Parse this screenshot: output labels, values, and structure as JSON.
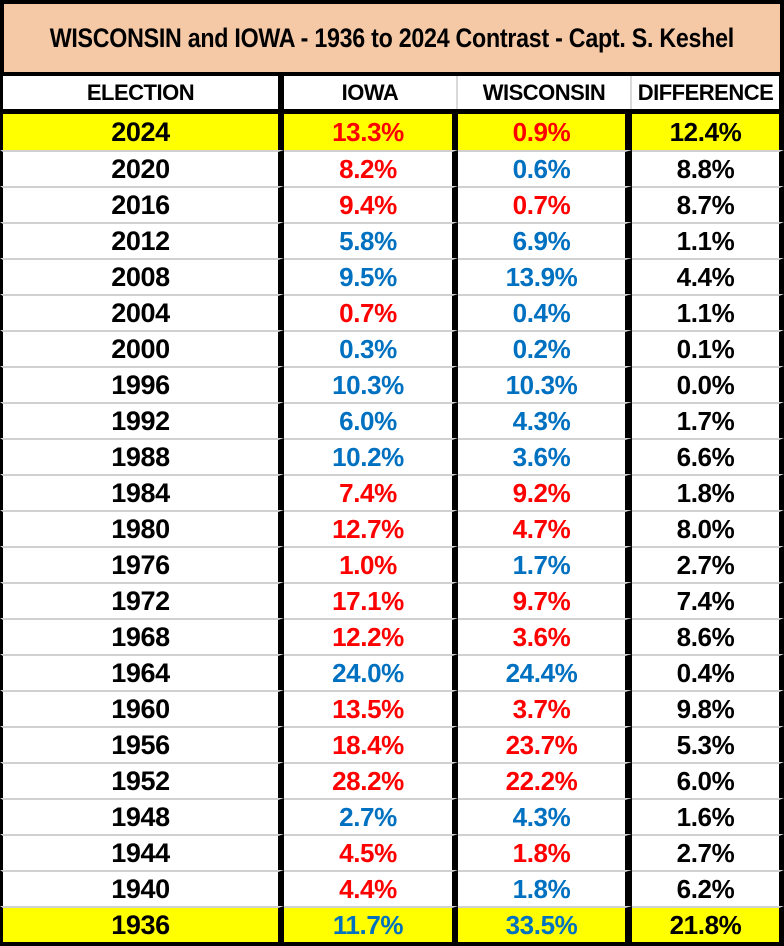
{
  "colors": {
    "red": "#FF0000",
    "blue": "#0070C0",
    "text": "#000000",
    "highlight": "#FFFF00",
    "banner_bg": "#F5C8A6",
    "grid_line": "#D0D0D0",
    "header_divider": "#D9D9D9",
    "table_border": "#000000"
  },
  "chart_data": {
    "type": "table",
    "title": "WISCONSIN and IOWA - 1936 to 2024 Contrast - Capt. S. Keshel",
    "columns": [
      "ELECTION",
      "IOWA",
      "WISCONSIN",
      "DIFFERENCE"
    ],
    "highlighted_years": [
      "2024",
      "1936"
    ],
    "rows": [
      {
        "year": "2024",
        "iowa": "13.3%",
        "iowa_color": "red",
        "wisconsin": "0.9%",
        "wisconsin_color": "red",
        "difference": "12.4%",
        "highlighted": true
      },
      {
        "year": "2020",
        "iowa": "8.2%",
        "iowa_color": "red",
        "wisconsin": "0.6%",
        "wisconsin_color": "blue",
        "difference": "8.8%",
        "highlighted": false
      },
      {
        "year": "2016",
        "iowa": "9.4%",
        "iowa_color": "red",
        "wisconsin": "0.7%",
        "wisconsin_color": "red",
        "difference": "8.7%",
        "highlighted": false
      },
      {
        "year": "2012",
        "iowa": "5.8%",
        "iowa_color": "blue",
        "wisconsin": "6.9%",
        "wisconsin_color": "blue",
        "difference": "1.1%",
        "highlighted": false
      },
      {
        "year": "2008",
        "iowa": "9.5%",
        "iowa_color": "blue",
        "wisconsin": "13.9%",
        "wisconsin_color": "blue",
        "difference": "4.4%",
        "highlighted": false
      },
      {
        "year": "2004",
        "iowa": "0.7%",
        "iowa_color": "red",
        "wisconsin": "0.4%",
        "wisconsin_color": "blue",
        "difference": "1.1%",
        "highlighted": false
      },
      {
        "year": "2000",
        "iowa": "0.3%",
        "iowa_color": "blue",
        "wisconsin": "0.2%",
        "wisconsin_color": "blue",
        "difference": "0.1%",
        "highlighted": false
      },
      {
        "year": "1996",
        "iowa": "10.3%",
        "iowa_color": "blue",
        "wisconsin": "10.3%",
        "wisconsin_color": "blue",
        "difference": "0.0%",
        "highlighted": false
      },
      {
        "year": "1992",
        "iowa": "6.0%",
        "iowa_color": "blue",
        "wisconsin": "4.3%",
        "wisconsin_color": "blue",
        "difference": "1.7%",
        "highlighted": false
      },
      {
        "year": "1988",
        "iowa": "10.2%",
        "iowa_color": "blue",
        "wisconsin": "3.6%",
        "wisconsin_color": "blue",
        "difference": "6.6%",
        "highlighted": false
      },
      {
        "year": "1984",
        "iowa": "7.4%",
        "iowa_color": "red",
        "wisconsin": "9.2%",
        "wisconsin_color": "red",
        "difference": "1.8%",
        "highlighted": false
      },
      {
        "year": "1980",
        "iowa": "12.7%",
        "iowa_color": "red",
        "wisconsin": "4.7%",
        "wisconsin_color": "red",
        "difference": "8.0%",
        "highlighted": false
      },
      {
        "year": "1976",
        "iowa": "1.0%",
        "iowa_color": "red",
        "wisconsin": "1.7%",
        "wisconsin_color": "blue",
        "difference": "2.7%",
        "highlighted": false
      },
      {
        "year": "1972",
        "iowa": "17.1%",
        "iowa_color": "red",
        "wisconsin": "9.7%",
        "wisconsin_color": "red",
        "difference": "7.4%",
        "highlighted": false
      },
      {
        "year": "1968",
        "iowa": "12.2%",
        "iowa_color": "red",
        "wisconsin": "3.6%",
        "wisconsin_color": "red",
        "difference": "8.6%",
        "highlighted": false
      },
      {
        "year": "1964",
        "iowa": "24.0%",
        "iowa_color": "blue",
        "wisconsin": "24.4%",
        "wisconsin_color": "blue",
        "difference": "0.4%",
        "highlighted": false
      },
      {
        "year": "1960",
        "iowa": "13.5%",
        "iowa_color": "red",
        "wisconsin": "3.7%",
        "wisconsin_color": "red",
        "difference": "9.8%",
        "highlighted": false
      },
      {
        "year": "1956",
        "iowa": "18.4%",
        "iowa_color": "red",
        "wisconsin": "23.7%",
        "wisconsin_color": "red",
        "difference": "5.3%",
        "highlighted": false
      },
      {
        "year": "1952",
        "iowa": "28.2%",
        "iowa_color": "red",
        "wisconsin": "22.2%",
        "wisconsin_color": "red",
        "difference": "6.0%",
        "highlighted": false
      },
      {
        "year": "1948",
        "iowa": "2.7%",
        "iowa_color": "blue",
        "wisconsin": "4.3%",
        "wisconsin_color": "blue",
        "difference": "1.6%",
        "highlighted": false
      },
      {
        "year": "1944",
        "iowa": "4.5%",
        "iowa_color": "red",
        "wisconsin": "1.8%",
        "wisconsin_color": "red",
        "difference": "2.7%",
        "highlighted": false
      },
      {
        "year": "1940",
        "iowa": "4.4%",
        "iowa_color": "red",
        "wisconsin": "1.8%",
        "wisconsin_color": "blue",
        "difference": "6.2%",
        "highlighted": false
      },
      {
        "year": "1936",
        "iowa": "11.7%",
        "iowa_color": "blue",
        "wisconsin": "33.5%",
        "wisconsin_color": "blue",
        "difference": "21.8%",
        "highlighted": true
      }
    ]
  }
}
